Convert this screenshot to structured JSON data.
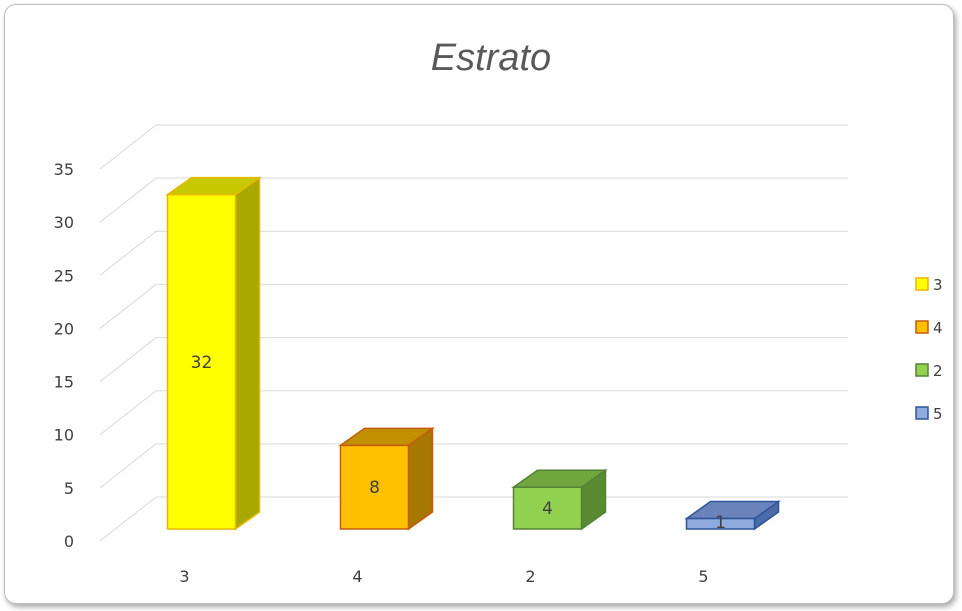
{
  "chart_data": {
    "type": "bar",
    "title": "Estrato",
    "xlabel": "",
    "ylabel": "",
    "categories": [
      "3",
      "4",
      "2",
      "5"
    ],
    "values": [
      32,
      8,
      4,
      1
    ],
    "ylim": [
      0,
      35
    ],
    "yticks": [
      "0",
      "5",
      "10",
      "15",
      "20",
      "25",
      "30",
      "35"
    ],
    "grid": true,
    "legend_position": "right",
    "legend": [
      "3",
      "4",
      "2",
      "5"
    ],
    "colors": [
      {
        "front": "#ffff00",
        "edge": "#e6b800",
        "side": "#a8a800",
        "top": "#c8c800"
      },
      {
        "front": "#ffc000",
        "edge": "#c55a11",
        "side": "#a67800",
        "top": "#c09000"
      },
      {
        "front": "#92d050",
        "edge": "#548235",
        "side": "#5a8a32",
        "top": "#6fa63e"
      },
      {
        "front": "#8faadc",
        "edge": "#2f5597",
        "side": "#4a6aa8",
        "top": "#6a84bb"
      }
    ]
  }
}
